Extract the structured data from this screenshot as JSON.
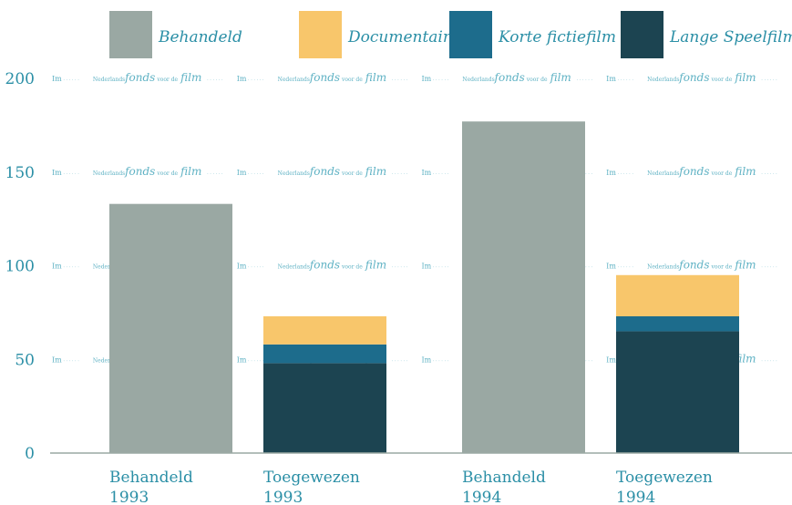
{
  "chart_data": {
    "type": "bar",
    "stacked": true,
    "categories": [
      [
        "Behandeld",
        "1993"
      ],
      [
        "Toegewezen",
        "1993"
      ],
      [
        "Behandeld",
        "1994"
      ],
      [
        "Toegewezen",
        "1994"
      ]
    ],
    "series": [
      {
        "name": "Behandeld",
        "color": "#9aa8a3",
        "values": [
          133,
          0,
          177,
          0
        ]
      },
      {
        "name": "Lange Speelfilm",
        "color": "#1c4451",
        "values": [
          0,
          48,
          0,
          65
        ]
      },
      {
        "name": "Korte fictiefilm",
        "color": "#1d6c8c",
        "values": [
          0,
          10,
          0,
          8
        ]
      },
      {
        "name": "Documentairefilm",
        "color": "#f8c66b",
        "values": [
          0,
          15,
          0,
          22
        ]
      }
    ],
    "legend_order": [
      "Behandeld",
      "Documentairefilm",
      "Korte fictiefilm",
      "Lange Speelfilm"
    ],
    "legend_position": "top",
    "ylim": [
      0,
      200
    ],
    "yticks": [
      0,
      50,
      100,
      150,
      200
    ],
    "title": "",
    "xlabel": "",
    "ylabel": "",
    "grid": true,
    "gridline_words": [
      "Nederlands",
      "fonds",
      "voor de",
      "film"
    ]
  }
}
